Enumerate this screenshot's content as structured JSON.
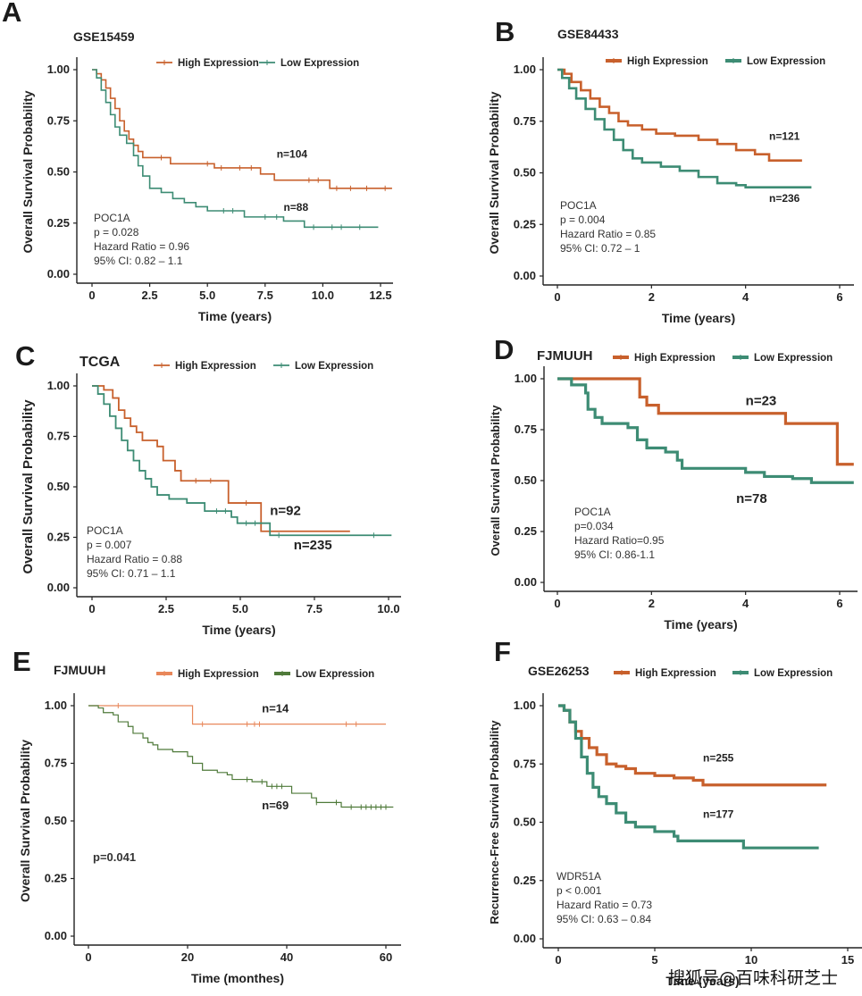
{
  "figure": {
    "watermark": "搜狐号@百味科研芝士"
  },
  "colors": {
    "high": "#c8602c",
    "low": "#3d8c74",
    "low_green": "#4f7a3a",
    "high_light": "#e8875a"
  },
  "chart_data": [
    {
      "panel": "A",
      "type": "line",
      "title": "GSE15459",
      "xlabel": "Time (years)",
      "ylabel": "Overall Survival Probability",
      "xlim": [
        0,
        13.2
      ],
      "ylim": [
        0,
        1
      ],
      "xticks": [
        0,
        2.5,
        5.0,
        7.5,
        10.0,
        12.5
      ],
      "xtick_labels": [
        "0",
        "2.5",
        "5.0",
        "7.5",
        "10.0",
        "12.5"
      ],
      "yticks": [
        0,
        0.25,
        0.5,
        0.75,
        1.0
      ],
      "ytick_labels": [
        "0.00",
        "0.25",
        "0.50",
        "0.75",
        "1.00"
      ],
      "legend": [
        "High Expression",
        "Low Expression"
      ],
      "stats": [
        "POC1A",
        "p = 0.028",
        "Hazard Ratio = 0.96",
        "95% CI: 0.82 – 1.1"
      ],
      "series": [
        {
          "name": "High Expression",
          "n_label": "n=104",
          "n_pos": [
            8.0,
            0.57
          ],
          "x": [
            0,
            0.2,
            0.4,
            0.6,
            0.8,
            1.0,
            1.2,
            1.4,
            1.6,
            1.8,
            2.0,
            2.2,
            3.4,
            5.3,
            7.3,
            7.9,
            10.3,
            13.0
          ],
          "y": [
            1.0,
            0.98,
            0.95,
            0.91,
            0.86,
            0.81,
            0.75,
            0.7,
            0.66,
            0.63,
            0.6,
            0.57,
            0.54,
            0.52,
            0.49,
            0.46,
            0.42,
            0.42
          ],
          "censor": [
            3.0,
            5.0,
            5.6,
            6.4,
            6.9,
            9.4,
            9.8,
            10.6,
            11.2,
            11.9,
            12.7
          ]
        },
        {
          "name": "Low Expression",
          "n_label": "n=88",
          "n_pos": [
            8.3,
            0.31
          ],
          "x": [
            0,
            0.2,
            0.4,
            0.6,
            0.8,
            1.0,
            1.2,
            1.5,
            1.8,
            2.0,
            2.2,
            2.5,
            3.0,
            3.5,
            4.0,
            4.5,
            5.0,
            6.6,
            8.3,
            9.2,
            12.4
          ],
          "y": [
            1.0,
            0.96,
            0.9,
            0.84,
            0.78,
            0.72,
            0.68,
            0.64,
            0.58,
            0.53,
            0.48,
            0.42,
            0.4,
            0.37,
            0.35,
            0.33,
            0.31,
            0.28,
            0.26,
            0.23,
            0.23
          ],
          "censor": [
            5.7,
            6.1,
            7.5,
            8.0,
            9.6,
            10.4,
            10.8,
            11.6
          ]
        }
      ]
    },
    {
      "panel": "B",
      "type": "line",
      "title": "GSE84433",
      "xlabel": "Time (years)",
      "ylabel": "Overall Survival Probability",
      "xlim": [
        0,
        6.3
      ],
      "ylim": [
        0,
        1
      ],
      "xticks": [
        0,
        2,
        4,
        6
      ],
      "xtick_labels": [
        "0",
        "2",
        "4",
        "6"
      ],
      "yticks": [
        0,
        0.25,
        0.5,
        0.75,
        1.0
      ],
      "ytick_labels": [
        "0.00",
        "0.25",
        "0.50",
        "0.75",
        "1.00"
      ],
      "legend": [
        "High Expression",
        "Low Expression"
      ],
      "stats": [
        "POC1A",
        "p = 0.004",
        "Hazard Ratio = 0.85",
        "95% CI: 0.72 – 1"
      ],
      "series": [
        {
          "name": "High Expression",
          "n_label": "n=121",
          "n_pos": [
            4.5,
            0.66
          ],
          "x": [
            0,
            0.15,
            0.3,
            0.5,
            0.7,
            0.9,
            1.1,
            1.3,
            1.5,
            1.8,
            2.1,
            2.5,
            3.0,
            3.4,
            3.8,
            4.2,
            4.5,
            5.2
          ],
          "y": [
            1.0,
            0.98,
            0.94,
            0.9,
            0.86,
            0.82,
            0.79,
            0.75,
            0.73,
            0.71,
            0.69,
            0.68,
            0.66,
            0.64,
            0.61,
            0.59,
            0.56,
            0.56
          ],
          "censor": []
        },
        {
          "name": "Low Expression",
          "n_label": "n=236",
          "n_pos": [
            4.5,
            0.36
          ],
          "x": [
            0,
            0.1,
            0.25,
            0.4,
            0.6,
            0.8,
            1.0,
            1.2,
            1.4,
            1.6,
            1.8,
            2.2,
            2.6,
            3.0,
            3.4,
            3.8,
            4.0,
            5.4
          ],
          "y": [
            1.0,
            0.96,
            0.91,
            0.86,
            0.81,
            0.76,
            0.71,
            0.66,
            0.61,
            0.57,
            0.55,
            0.53,
            0.51,
            0.48,
            0.45,
            0.44,
            0.43,
            0.43
          ],
          "censor": []
        }
      ]
    },
    {
      "panel": "C",
      "type": "line",
      "title": "TCGA",
      "xlabel": "Time (years)",
      "ylabel": "Overall Survival Probability",
      "xlim": [
        0,
        10.3
      ],
      "ylim": [
        0,
        1
      ],
      "xticks": [
        0,
        2.5,
        5.0,
        7.5,
        10.0
      ],
      "xtick_labels": [
        "0",
        "2.5",
        "5.0",
        "7.5",
        "10.0"
      ],
      "yticks": [
        0,
        0.25,
        0.5,
        0.75,
        1.0
      ],
      "ytick_labels": [
        "0.00",
        "0.25",
        "0.50",
        "0.75",
        "1.00"
      ],
      "legend": [
        "High Expression",
        "Low Expression"
      ],
      "stats": [
        "POC1A",
        "p = 0.007",
        "Hazard Ratio = 0.88",
        "95% CI: 0.71 – 1.1"
      ],
      "series": [
        {
          "name": "High Expression",
          "n_label": "n=92",
          "n_pos": [
            6.0,
            0.36
          ],
          "x": [
            0,
            0.4,
            0.7,
            0.9,
            1.1,
            1.3,
            1.5,
            1.7,
            2.2,
            2.4,
            2.8,
            3.0,
            4.6,
            5.7,
            8.7
          ],
          "y": [
            1.0,
            0.98,
            0.94,
            0.88,
            0.84,
            0.8,
            0.77,
            0.73,
            0.7,
            0.63,
            0.58,
            0.53,
            0.42,
            0.28,
            0.28
          ],
          "censor": [
            3.5,
            4.0,
            5.2
          ]
        },
        {
          "name": "Low Expression",
          "n_label": "n=235",
          "n_pos": [
            6.8,
            0.19
          ],
          "x": [
            0,
            0.2,
            0.4,
            0.6,
            0.8,
            1.0,
            1.2,
            1.4,
            1.6,
            1.8,
            2.0,
            2.2,
            2.6,
            3.2,
            3.8,
            4.7,
            4.9,
            6.0,
            10.1
          ],
          "y": [
            1.0,
            0.96,
            0.91,
            0.85,
            0.79,
            0.73,
            0.68,
            0.63,
            0.58,
            0.54,
            0.5,
            0.46,
            0.44,
            0.42,
            0.38,
            0.35,
            0.32,
            0.26,
            0.26
          ],
          "censor": [
            4.2,
            4.5,
            5.2,
            5.5,
            6.3,
            9.5
          ]
        }
      ]
    },
    {
      "panel": "D",
      "type": "line",
      "title": "FJMUUH",
      "xlabel": "Time (years)",
      "ylabel": "Overall Survival Probability",
      "xlim": [
        0,
        6.3
      ],
      "ylim": [
        0,
        1
      ],
      "xticks": [
        0,
        2,
        4,
        6
      ],
      "xtick_labels": [
        "0",
        "2",
        "4",
        "6"
      ],
      "yticks": [
        0,
        0.25,
        0.5,
        0.75,
        1.0
      ],
      "ytick_labels": [
        "0.00",
        "0.25",
        "0.50",
        "0.75",
        "1.00"
      ],
      "legend": [
        "High Expression",
        "Low Expression"
      ],
      "stats": [
        "POC1A",
        "p=0.034",
        "Hazard Ratio=0.95",
        "95% CI: 0.86-1.1"
      ],
      "series": [
        {
          "name": "High Expression",
          "n_label": "n=23",
          "n_pos": [
            4.0,
            0.87
          ],
          "x": [
            0,
            1.75,
            1.9,
            2.15,
            4.85,
            5.95,
            6.3
          ],
          "y": [
            1.0,
            0.91,
            0.87,
            0.83,
            0.78,
            0.58,
            0.58
          ],
          "censor": []
        },
        {
          "name": "Low Expression",
          "n_label": "n=78",
          "n_pos": [
            3.8,
            0.39
          ],
          "x": [
            0,
            0.3,
            0.6,
            0.65,
            0.8,
            0.95,
            1.5,
            1.7,
            1.9,
            2.3,
            2.55,
            2.65,
            4.0,
            4.4,
            5.0,
            5.4,
            6.3
          ],
          "y": [
            1.0,
            0.97,
            0.93,
            0.85,
            0.81,
            0.78,
            0.76,
            0.7,
            0.66,
            0.64,
            0.6,
            0.56,
            0.54,
            0.52,
            0.51,
            0.49,
            0.49
          ],
          "censor": []
        }
      ]
    },
    {
      "panel": "E",
      "type": "line",
      "title": "FJMUUH",
      "xlabel": "Time (monthes)",
      "ylabel": "Overall Survival Probability",
      "xlim": [
        -3,
        63
      ],
      "ylim": [
        0,
        1
      ],
      "xticks": [
        0,
        20,
        40,
        60
      ],
      "xtick_labels": [
        "0",
        "20",
        "40",
        "60"
      ],
      "yticks": [
        0,
        0.25,
        0.5,
        0.75,
        1.0
      ],
      "ytick_labels": [
        "0.00",
        "0.25",
        "0.50",
        "0.75",
        "1.00"
      ],
      "legend": [
        "High Expression",
        "Low Expression"
      ],
      "stats": [
        "p=0.041"
      ],
      "series": [
        {
          "name": "High Expression",
          "n_label": "n=14",
          "n_pos": [
            35,
            0.97
          ],
          "x": [
            0,
            21,
            60
          ],
          "y": [
            1.0,
            0.92,
            0.92
          ],
          "censor": [
            6,
            23,
            32,
            33.5,
            34.5,
            52,
            54
          ]
        },
        {
          "name": "Low Expression",
          "n_label": "n=69",
          "n_pos": [
            35,
            0.55
          ],
          "x": [
            0,
            2,
            3,
            5,
            6,
            8,
            9,
            11,
            12,
            13,
            14,
            17,
            20,
            21,
            23,
            26,
            28,
            29,
            33,
            36,
            41,
            45,
            46,
            51,
            61.5
          ],
          "y": [
            1.0,
            0.99,
            0.97,
            0.96,
            0.93,
            0.91,
            0.88,
            0.86,
            0.84,
            0.83,
            0.81,
            0.8,
            0.78,
            0.75,
            0.72,
            0.71,
            0.7,
            0.68,
            0.67,
            0.65,
            0.62,
            0.6,
            0.58,
            0.56,
            0.56
          ],
          "censor": [
            32,
            35,
            37,
            38,
            39,
            46,
            50,
            53,
            55,
            56,
            57,
            58,
            59,
            60
          ]
        }
      ]
    },
    {
      "panel": "F",
      "type": "line",
      "title": "GSE26253",
      "xlabel": "Time (years)",
      "ylabel": "Recurrence-Free Survival Probability",
      "xlim": [
        -0.8,
        15.3
      ],
      "ylim": [
        0,
        1
      ],
      "xticks": [
        0,
        5,
        10,
        15
      ],
      "xtick_labels": [
        "0",
        "5",
        "10",
        "15"
      ],
      "yticks": [
        0,
        0.25,
        0.5,
        0.75,
        1.0
      ],
      "ytick_labels": [
        "0.00",
        "0.25",
        "0.50",
        "0.75",
        "1.00"
      ],
      "legend": [
        "High Expression",
        "Low Expression"
      ],
      "stats": [
        "WDR51A",
        "p < 0.001",
        "Hazard Ratio = 0.73",
        "95% CI: 0.63 – 0.84"
      ],
      "series": [
        {
          "name": "High Expression",
          "n_label": "n=255",
          "n_pos": [
            7.5,
            0.76
          ],
          "x": [
            0,
            0.3,
            0.6,
            0.9,
            1.2,
            1.6,
            2.0,
            2.5,
            3.0,
            3.5,
            4.0,
            5.0,
            6.0,
            7.0,
            7.5,
            13.9
          ],
          "y": [
            1.0,
            0.98,
            0.93,
            0.89,
            0.86,
            0.82,
            0.79,
            0.75,
            0.74,
            0.73,
            0.71,
            0.7,
            0.69,
            0.68,
            0.66,
            0.66
          ],
          "censor": []
        },
        {
          "name": "Low Expression",
          "n_label": "n=177",
          "n_pos": [
            7.5,
            0.52
          ],
          "x": [
            0,
            0.3,
            0.6,
            0.9,
            1.2,
            1.5,
            1.8,
            2.1,
            2.5,
            3.0,
            3.5,
            4.0,
            5.0,
            6.0,
            6.2,
            9.6,
            13.5
          ],
          "y": [
            1.0,
            0.98,
            0.93,
            0.86,
            0.78,
            0.71,
            0.65,
            0.61,
            0.58,
            0.54,
            0.5,
            0.48,
            0.46,
            0.44,
            0.42,
            0.39,
            0.39
          ],
          "censor": []
        }
      ]
    }
  ]
}
